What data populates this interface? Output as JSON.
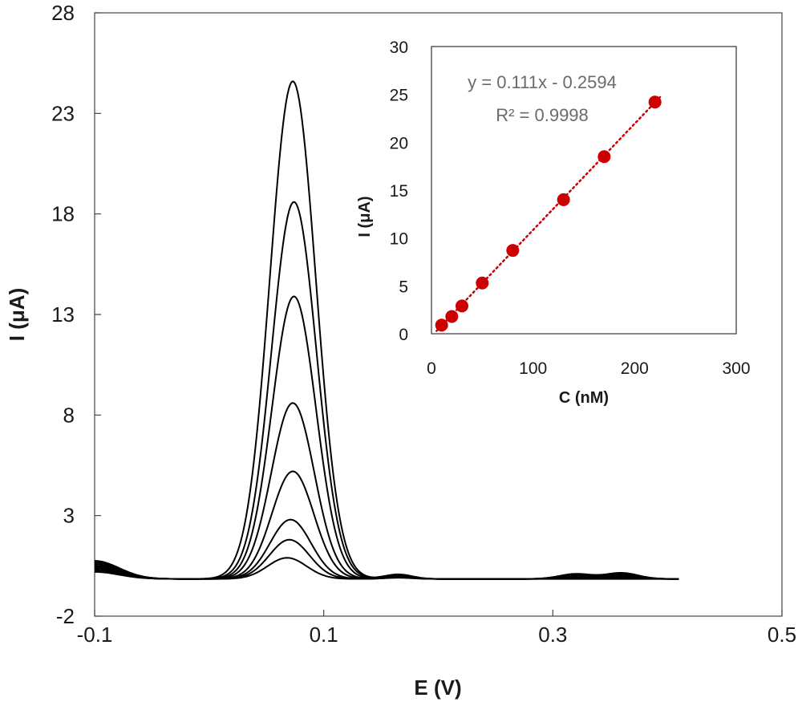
{
  "chart_data": [
    {
      "type": "line",
      "title": "",
      "xlabel": "E (V)",
      "ylabel": "I (μA)",
      "xlim": [
        -0.1,
        0.5
      ],
      "ylim": [
        -2,
        28
      ],
      "xticks": [
        "-0.1",
        "0.1",
        "0.3",
        "0.5"
      ],
      "yticks": [
        "-2",
        "3",
        "8",
        "13",
        "18",
        "23",
        "28"
      ],
      "grid": false,
      "legend": "none",
      "line_color": "#000000",
      "series": [
        {
          "peak_potential": 0.068,
          "peak_current": 0.9
        },
        {
          "peak_potential": 0.07,
          "peak_current": 1.8
        },
        {
          "peak_potential": 0.071,
          "peak_current": 2.8
        },
        {
          "peak_potential": 0.073,
          "peak_current": 5.2
        },
        {
          "peak_potential": 0.073,
          "peak_current": 8.6
        },
        {
          "peak_potential": 0.074,
          "peak_current": 13.9
        },
        {
          "peak_potential": 0.074,
          "peak_current": 18.6
        },
        {
          "peak_potential": 0.073,
          "peak_current": 24.6
        }
      ]
    },
    {
      "type": "scatter",
      "title": "",
      "xlabel": "C (nM)",
      "ylabel": "I (μA)",
      "xlim": [
        0,
        300
      ],
      "ylim": [
        0,
        30
      ],
      "xticks": [
        "0",
        "100",
        "200",
        "300"
      ],
      "yticks": [
        "0",
        "5",
        "10",
        "15",
        "20",
        "25",
        "30"
      ],
      "grid": false,
      "legend": "none",
      "marker_color": "#cc0000",
      "trendline_color": "#cc0000",
      "x": [
        10,
        20,
        30,
        50,
        80,
        130,
        170,
        220
      ],
      "y": [
        0.9,
        1.8,
        2.9,
        5.3,
        8.7,
        14.0,
        18.5,
        24.2
      ],
      "trendline": {
        "slope": 0.111,
        "intercept": -0.2594
      },
      "annotations": [
        "y = 0.111x - 0.2594",
        "R² = 0.9998"
      ]
    }
  ]
}
